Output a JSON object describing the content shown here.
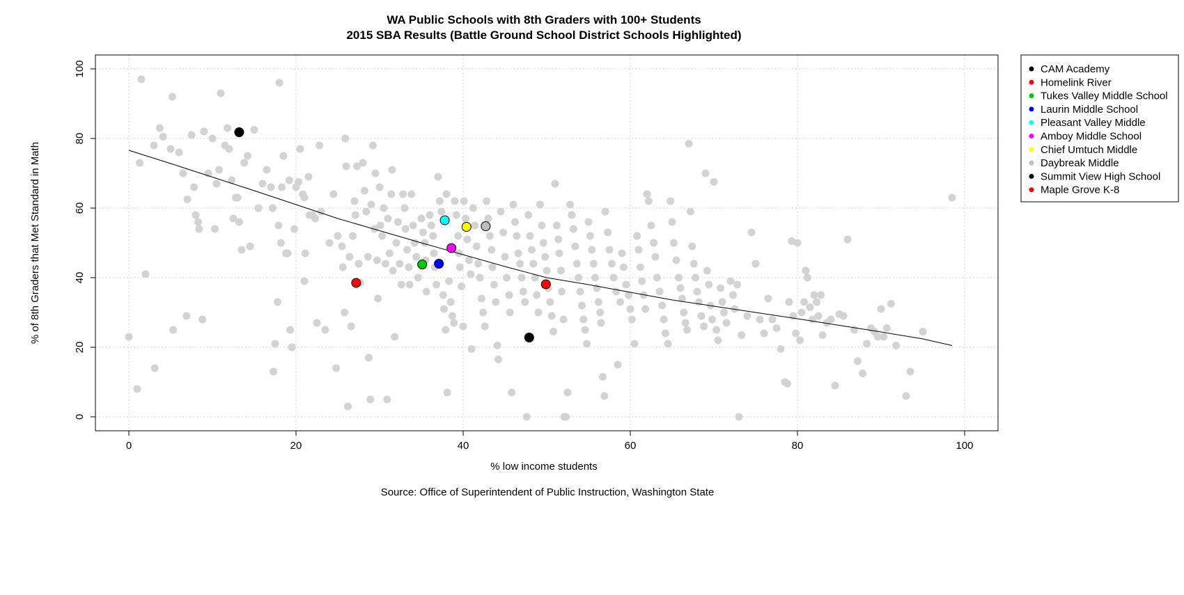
{
  "chart_data": {
    "type": "scatter",
    "title": "WA Public Schools with 8th Graders with 100+ Students",
    "subtitle": "2015 SBA Results (Battle Ground School District Schools Highlighted)",
    "xlabel": "% low income students",
    "ylabel": "% of 8th Graders that Met Standard in Math",
    "source": "Source: Office of Superintendent of Public Instruction, Washington State",
    "xlim": [
      -4,
      104
    ],
    "ylim": [
      -4,
      104
    ],
    "x_ticks": [
      "0",
      "20",
      "40",
      "60",
      "80",
      "100"
    ],
    "y_ticks": [
      "0",
      "20",
      "40",
      "60",
      "80",
      "100"
    ],
    "grid": true,
    "legend_position": "top-right",
    "background_point_color": "#d3d3d3",
    "trend_line": [
      [
        0,
        76.6
      ],
      [
        5,
        72.8
      ],
      [
        10,
        68.9
      ],
      [
        15,
        65.0
      ],
      [
        20,
        61.0
      ],
      [
        25,
        57.0
      ],
      [
        30,
        53.5
      ],
      [
        35,
        50.0
      ],
      [
        40,
        46.6
      ],
      [
        45,
        43.2
      ],
      [
        50,
        40.0
      ],
      [
        55,
        38.0
      ],
      [
        60,
        35.8
      ],
      [
        65,
        33.6
      ],
      [
        70,
        31.8
      ],
      [
        75,
        30.0
      ],
      [
        80,
        28.2
      ],
      [
        85,
        26.3
      ],
      [
        90,
        24.4
      ],
      [
        95,
        22.4
      ],
      [
        98.5,
        20.5
      ]
    ],
    "background_points": [
      [
        0,
        23
      ],
      [
        1,
        8
      ],
      [
        1.5,
        97
      ],
      [
        1.3,
        73
      ],
      [
        2,
        41
      ],
      [
        3,
        78
      ],
      [
        3.1,
        14
      ],
      [
        3.7,
        83
      ],
      [
        4.1,
        80.5
      ],
      [
        5,
        77
      ],
      [
        5.2,
        92
      ],
      [
        5.3,
        25
      ],
      [
        6,
        76
      ],
      [
        6.5,
        70
      ],
      [
        7,
        62.5
      ],
      [
        6.9,
        29
      ],
      [
        7.5,
        81
      ],
      [
        7.8,
        66
      ],
      [
        8,
        58
      ],
      [
        8.3,
        56
      ],
      [
        8.4,
        54
      ],
      [
        8.8,
        28
      ],
      [
        9,
        82
      ],
      [
        9.5,
        70
      ],
      [
        10,
        80
      ],
      [
        10.3,
        54
      ],
      [
        10.5,
        67
      ],
      [
        10.8,
        71
      ],
      [
        11,
        93
      ],
      [
        11.5,
        78
      ],
      [
        11.8,
        83
      ],
      [
        12,
        77
      ],
      [
        12.3,
        68
      ],
      [
        12.5,
        57
      ],
      [
        12.8,
        63
      ],
      [
        13,
        63
      ],
      [
        13.2,
        56
      ],
      [
        13.5,
        48
      ],
      [
        13.8,
        73
      ],
      [
        14.2,
        75
      ],
      [
        14.5,
        49
      ],
      [
        15,
        82.5
      ],
      [
        15.5,
        60
      ],
      [
        16,
        67
      ],
      [
        16.5,
        71
      ],
      [
        17,
        66
      ],
      [
        17.2,
        60
      ],
      [
        17.3,
        13
      ],
      [
        17.5,
        21
      ],
      [
        17.8,
        33
      ],
      [
        17.9,
        55
      ],
      [
        18,
        96
      ],
      [
        18.2,
        50
      ],
      [
        18.3,
        66
      ],
      [
        18.5,
        75
      ],
      [
        18.8,
        47
      ],
      [
        19,
        47
      ],
      [
        19.2,
        68
      ],
      [
        19.3,
        25
      ],
      [
        19.5,
        20
      ],
      [
        19.8,
        54
      ],
      [
        20,
        66
      ],
      [
        20.3,
        67.5
      ],
      [
        20.5,
        77
      ],
      [
        20.8,
        64
      ],
      [
        21,
        63
      ],
      [
        21,
        39
      ],
      [
        21.1,
        47
      ],
      [
        21.5,
        69
      ],
      [
        21.6,
        58
      ],
      [
        22,
        58
      ],
      [
        22.3,
        57
      ],
      [
        22.5,
        27
      ],
      [
        22.8,
        78
      ],
      [
        23,
        59
      ],
      [
        23.5,
        25
      ],
      [
        24,
        50
      ],
      [
        24.5,
        64
      ],
      [
        24.8,
        14
      ],
      [
        25,
        52
      ],
      [
        25.5,
        49
      ],
      [
        25.6,
        43
      ],
      [
        25.8,
        30
      ],
      [
        25.9,
        80
      ],
      [
        26,
        72
      ],
      [
        26.2,
        3
      ],
      [
        26.4,
        46
      ],
      [
        26.6,
        26
      ],
      [
        26.8,
        52
      ],
      [
        27,
        62
      ],
      [
        27.1,
        58
      ],
      [
        27.3,
        72
      ],
      [
        27.5,
        44
      ],
      [
        27.7,
        38.5
      ],
      [
        28,
        73
      ],
      [
        28.2,
        65
      ],
      [
        28.4,
        59
      ],
      [
        28.6,
        46
      ],
      [
        28.7,
        17
      ],
      [
        28.9,
        5
      ],
      [
        29,
        61
      ],
      [
        29.2,
        78
      ],
      [
        29.4,
        54
      ],
      [
        29.5,
        70
      ],
      [
        29.7,
        45
      ],
      [
        29.8,
        34
      ],
      [
        30,
        66
      ],
      [
        30.1,
        55
      ],
      [
        30.3,
        52
      ],
      [
        30.5,
        60
      ],
      [
        30.7,
        44
      ],
      [
        30.9,
        5
      ],
      [
        31,
        57
      ],
      [
        31.2,
        47
      ],
      [
        31.4,
        64
      ],
      [
        31.5,
        71
      ],
      [
        31.6,
        42
      ],
      [
        31.8,
        23
      ],
      [
        32,
        50
      ],
      [
        32.2,
        56
      ],
      [
        32.4,
        44
      ],
      [
        32.6,
        38
      ],
      [
        32.8,
        64
      ],
      [
        33,
        60
      ],
      [
        33.1,
        54
      ],
      [
        33.3,
        48
      ],
      [
        33.5,
        43
      ],
      [
        33.6,
        38
      ],
      [
        33.8,
        64
      ],
      [
        34,
        55
      ],
      [
        34.2,
        50
      ],
      [
        34.4,
        46
      ],
      [
        34.6,
        40
      ],
      [
        35,
        57
      ],
      [
        35.2,
        53
      ],
      [
        35.4,
        50
      ],
      [
        35.5,
        45
      ],
      [
        35.6,
        36
      ],
      [
        36,
        58
      ],
      [
        36.2,
        55
      ],
      [
        36.4,
        52
      ],
      [
        36.5,
        47
      ],
      [
        36.6,
        43
      ],
      [
        36.8,
        38
      ],
      [
        37,
        69
      ],
      [
        37.2,
        62
      ],
      [
        37.4,
        59
      ],
      [
        37.6,
        35
      ],
      [
        37.7,
        31
      ],
      [
        37.9,
        25
      ],
      [
        38,
        64
      ],
      [
        38.1,
        7
      ],
      [
        38.3,
        39
      ],
      [
        38.5,
        33
      ],
      [
        38.7,
        29
      ],
      [
        38.9,
        27
      ],
      [
        39,
        62
      ],
      [
        39.2,
        58
      ],
      [
        39.4,
        52
      ],
      [
        39.5,
        47
      ],
      [
        39.6,
        43
      ],
      [
        39.8,
        37.5
      ],
      [
        40,
        26
      ],
      [
        40.1,
        62
      ],
      [
        40.3,
        57
      ],
      [
        40.5,
        51
      ],
      [
        40.7,
        45
      ],
      [
        40.9,
        41
      ],
      [
        41,
        19.5
      ],
      [
        41.2,
        60
      ],
      [
        41.4,
        55
      ],
      [
        41.6,
        49
      ],
      [
        41.8,
        44
      ],
      [
        42,
        40
      ],
      [
        42.2,
        34
      ],
      [
        42.4,
        30
      ],
      [
        42.6,
        26
      ],
      [
        42.8,
        62
      ],
      [
        43,
        57
      ],
      [
        43.2,
        52
      ],
      [
        43.4,
        48
      ],
      [
        43.5,
        43
      ],
      [
        43.7,
        38
      ],
      [
        43.9,
        33
      ],
      [
        44.1,
        20.5
      ],
      [
        44.2,
        16.5
      ],
      [
        44.5,
        59
      ],
      [
        44.8,
        53
      ],
      [
        45,
        46
      ],
      [
        45.2,
        40
      ],
      [
        45.5,
        35
      ],
      [
        45.6,
        30
      ],
      [
        45.8,
        7
      ],
      [
        46,
        61
      ],
      [
        46.2,
        56
      ],
      [
        46.4,
        52
      ],
      [
        46.6,
        47
      ],
      [
        46.8,
        44
      ],
      [
        47,
        40
      ],
      [
        47.2,
        36
      ],
      [
        47.4,
        33
      ],
      [
        47.6,
        0
      ],
      [
        47.8,
        58
      ],
      [
        48,
        52
      ],
      [
        48.2,
        48
      ],
      [
        48.4,
        44
      ],
      [
        48.6,
        40
      ],
      [
        48.8,
        35
      ],
      [
        49,
        30
      ],
      [
        49.2,
        61
      ],
      [
        49.4,
        55
      ],
      [
        49.6,
        50
      ],
      [
        49.8,
        46
      ],
      [
        50,
        42
      ],
      [
        50.2,
        37
      ],
      [
        50.4,
        33
      ],
      [
        50.6,
        29
      ],
      [
        50.8,
        24.5
      ],
      [
        51,
        67
      ],
      [
        51.2,
        55
      ],
      [
        51.4,
        51
      ],
      [
        51.5,
        47
      ],
      [
        51.7,
        42
      ],
      [
        51.8,
        36
      ],
      [
        52,
        28
      ],
      [
        52.1,
        0
      ],
      [
        52.3,
        0
      ],
      [
        52.5,
        7
      ],
      [
        52.8,
        61
      ],
      [
        53,
        58
      ],
      [
        53.2,
        54
      ],
      [
        53.4,
        49
      ],
      [
        53.6,
        44
      ],
      [
        53.8,
        40
      ],
      [
        54,
        36
      ],
      [
        54.2,
        32
      ],
      [
        54.4,
        28
      ],
      [
        54.6,
        25
      ],
      [
        54.8,
        21
      ],
      [
        55,
        56
      ],
      [
        55.2,
        52
      ],
      [
        55.4,
        48
      ],
      [
        55.6,
        44
      ],
      [
        55.8,
        40
      ],
      [
        56,
        37
      ],
      [
        56.2,
        33
      ],
      [
        56.4,
        30
      ],
      [
        56.5,
        27
      ],
      [
        56.7,
        11.5
      ],
      [
        56.9,
        6
      ],
      [
        57,
        59
      ],
      [
        57.3,
        53
      ],
      [
        57.5,
        48
      ],
      [
        57.8,
        44
      ],
      [
        58,
        40
      ],
      [
        58.3,
        36
      ],
      [
        58.5,
        15
      ],
      [
        58.8,
        33
      ],
      [
        59,
        47
      ],
      [
        59.2,
        43
      ],
      [
        59.5,
        38
      ],
      [
        59.8,
        35
      ],
      [
        60,
        31
      ],
      [
        60.2,
        28
      ],
      [
        60.5,
        21
      ],
      [
        60.8,
        52
      ],
      [
        61,
        48
      ],
      [
        61.2,
        43
      ],
      [
        61.4,
        39
      ],
      [
        61.6,
        35
      ],
      [
        61.8,
        31
      ],
      [
        62,
        64
      ],
      [
        62.2,
        62
      ],
      [
        62.5,
        55
      ],
      [
        62.8,
        50
      ],
      [
        63,
        46
      ],
      [
        63.2,
        40
      ],
      [
        63.5,
        36
      ],
      [
        63.8,
        32
      ],
      [
        64,
        28
      ],
      [
        64.2,
        24
      ],
      [
        64.5,
        21
      ],
      [
        64.8,
        62
      ],
      [
        65,
        56
      ],
      [
        65.2,
        50
      ],
      [
        65.5,
        45
      ],
      [
        65.8,
        40
      ],
      [
        66,
        37
      ],
      [
        66.2,
        34
      ],
      [
        66.4,
        30
      ],
      [
        66.6,
        27
      ],
      [
        66.8,
        25
      ],
      [
        67,
        78.5
      ],
      [
        67.2,
        59
      ],
      [
        67.4,
        49
      ],
      [
        67.6,
        44
      ],
      [
        67.8,
        40
      ],
      [
        68,
        36
      ],
      [
        68.2,
        33
      ],
      [
        68.5,
        29
      ],
      [
        68.8,
        26
      ],
      [
        69,
        70
      ],
      [
        69.2,
        42
      ],
      [
        69.4,
        38
      ],
      [
        69.6,
        32
      ],
      [
        69.8,
        28
      ],
      [
        70,
        67.5
      ],
      [
        70.3,
        25
      ],
      [
        70.5,
        22
      ],
      [
        70.8,
        37
      ],
      [
        71,
        33
      ],
      [
        71.2,
        30
      ],
      [
        71.5,
        27
      ],
      [
        72,
        39
      ],
      [
        72.3,
        35
      ],
      [
        72.5,
        31
      ],
      [
        72.8,
        38
      ],
      [
        73,
        0
      ],
      [
        73.3,
        23.5
      ],
      [
        74,
        29
      ],
      [
        74.5,
        53
      ],
      [
        75,
        44
      ],
      [
        75.5,
        28
      ],
      [
        76,
        24
      ],
      [
        76.5,
        34
      ],
      [
        77,
        28
      ],
      [
        77.5,
        25.5
      ],
      [
        78,
        19.5
      ],
      [
        78.5,
        10
      ],
      [
        78.8,
        9.5
      ],
      [
        79,
        33
      ],
      [
        79.3,
        50.5
      ],
      [
        79.5,
        29
      ],
      [
        79.8,
        24
      ],
      [
        80,
        50
      ],
      [
        80.3,
        22
      ],
      [
        80.5,
        30
      ],
      [
        80.8,
        33
      ],
      [
        81,
        42
      ],
      [
        81.2,
        40
      ],
      [
        81.5,
        31.5
      ],
      [
        81.8,
        28
      ],
      [
        82,
        35
      ],
      [
        82.3,
        33
      ],
      [
        82.5,
        29
      ],
      [
        82.8,
        35
      ],
      [
        83,
        23.5
      ],
      [
        83.5,
        27
      ],
      [
        84,
        28
      ],
      [
        84.5,
        9
      ],
      [
        85,
        29.5
      ],
      [
        85.5,
        29
      ],
      [
        86,
        51
      ],
      [
        86.8,
        25
      ],
      [
        87.2,
        16
      ],
      [
        87.8,
        12.5
      ],
      [
        88.3,
        21
      ],
      [
        88.8,
        25.5
      ],
      [
        89.2,
        24.5
      ],
      [
        89.6,
        23
      ],
      [
        90,
        31
      ],
      [
        90.3,
        23
      ],
      [
        90.7,
        25.5
      ],
      [
        91.2,
        32.5
      ],
      [
        91.8,
        20.5
      ],
      [
        93,
        6
      ],
      [
        93.5,
        13
      ],
      [
        95,
        24.5
      ],
      [
        98.5,
        63
      ]
    ],
    "highlighted_points": [
      {
        "name": "CAM Academy",
        "x": 13.2,
        "y": 81.8,
        "color": "#000000"
      },
      {
        "name": "Homelink River",
        "x": 27.2,
        "y": 38.5,
        "color": "#ff0000"
      },
      {
        "name": "Tukes Valley Middle School",
        "x": 35.1,
        "y": 43.8,
        "color": "#00cd00"
      },
      {
        "name": "Laurin Middle School",
        "x": 37.1,
        "y": 44.0,
        "color": "#0000ff"
      },
      {
        "name": "Pleasant Valley Middle",
        "x": 37.8,
        "y": 56.5,
        "color": "#00ffff"
      },
      {
        "name": "Amboy Middle School",
        "x": 38.6,
        "y": 48.5,
        "color": "#ff00ff"
      },
      {
        "name": "Chief Umtuch Middle",
        "x": 40.4,
        "y": 54.6,
        "color": "#ffff00"
      },
      {
        "name": "Daybreak Middle",
        "x": 42.7,
        "y": 54.8,
        "color": "#bebebe"
      },
      {
        "name": "Summit View High School",
        "x": 47.9,
        "y": 22.8,
        "color": "#000000"
      },
      {
        "name": "Maple Grove K-8",
        "x": 49.9,
        "y": 38.1,
        "color": "#ff0000"
      }
    ]
  }
}
